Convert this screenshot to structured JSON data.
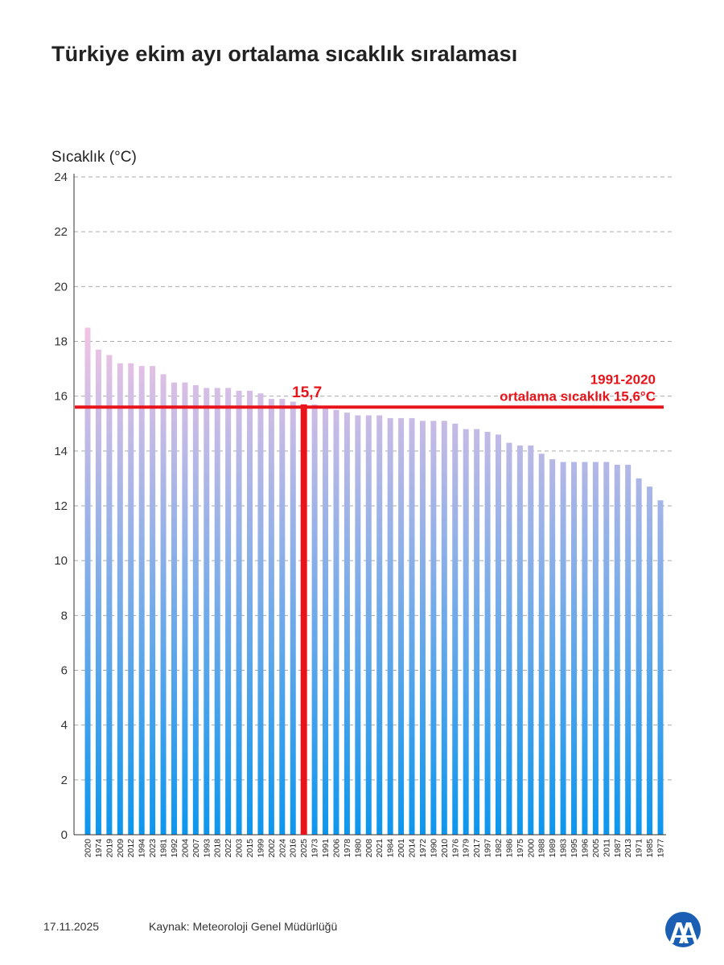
{
  "header": {
    "title": "Türkiye ekim ayı ortalama sıcaklık sıralaması"
  },
  "chart_data": {
    "type": "bar",
    "title": "Türkiye ekim ayı ortalama sıcaklık sıralaması",
    "ylabel": "Sıcaklık (°C)",
    "xlabel": "",
    "ylim": [
      0,
      24
    ],
    "yticks": [
      0,
      2,
      4,
      6,
      8,
      10,
      12,
      14,
      16,
      18,
      20,
      22,
      24
    ],
    "grid": true,
    "categories": [
      "2020",
      "1974",
      "2019",
      "2009",
      "2012",
      "1994",
      "2023",
      "1981",
      "1992",
      "2004",
      "2007",
      "1993",
      "2018",
      "2022",
      "2003",
      "2015",
      "1999",
      "2002",
      "2024",
      "2016",
      "2025",
      "1973",
      "1991",
      "2006",
      "1978",
      "1980",
      "2008",
      "2021",
      "1984",
      "2001",
      "2014",
      "1972",
      "1990",
      "2010",
      "1976",
      "1979",
      "2017",
      "1997",
      "1982",
      "1986",
      "1975",
      "2000",
      "1988",
      "1989",
      "1983",
      "1995",
      "1996",
      "2005",
      "2011",
      "1987",
      "2013",
      "1971",
      "1985",
      "1977"
    ],
    "values": [
      18.5,
      17.7,
      17.5,
      17.2,
      17.2,
      17.1,
      17.1,
      16.8,
      16.5,
      16.5,
      16.4,
      16.3,
      16.3,
      16.3,
      16.2,
      16.2,
      16.1,
      15.9,
      15.9,
      15.8,
      15.7,
      15.7,
      15.6,
      15.5,
      15.4,
      15.3,
      15.3,
      15.3,
      15.2,
      15.2,
      15.2,
      15.1,
      15.1,
      15.1,
      15.0,
      14.8,
      14.8,
      14.7,
      14.6,
      14.3,
      14.2,
      14.2,
      13.9,
      13.7,
      13.6,
      13.6,
      13.6,
      13.6,
      13.6,
      13.5,
      13.5,
      13.0,
      12.7,
      12.2
    ],
    "highlight": {
      "category": "2025",
      "label": "15,7",
      "color": "#e8141b"
    },
    "reference_line": {
      "value": 15.6,
      "label_line1": "1991-2020",
      "label_line2": "ortalama sıcaklık 15,6°C",
      "color": "#e8141b"
    },
    "bar_gradient": {
      "top": "#f9c5e3",
      "bottom": "#0c96ee"
    }
  },
  "footer": {
    "date": "17.11.2025",
    "source": "Kaynak: Meteoroloji Genel Müdürlüğü"
  },
  "logo": {
    "icon": "aa-logo-icon",
    "color": "#1a5fb4"
  }
}
